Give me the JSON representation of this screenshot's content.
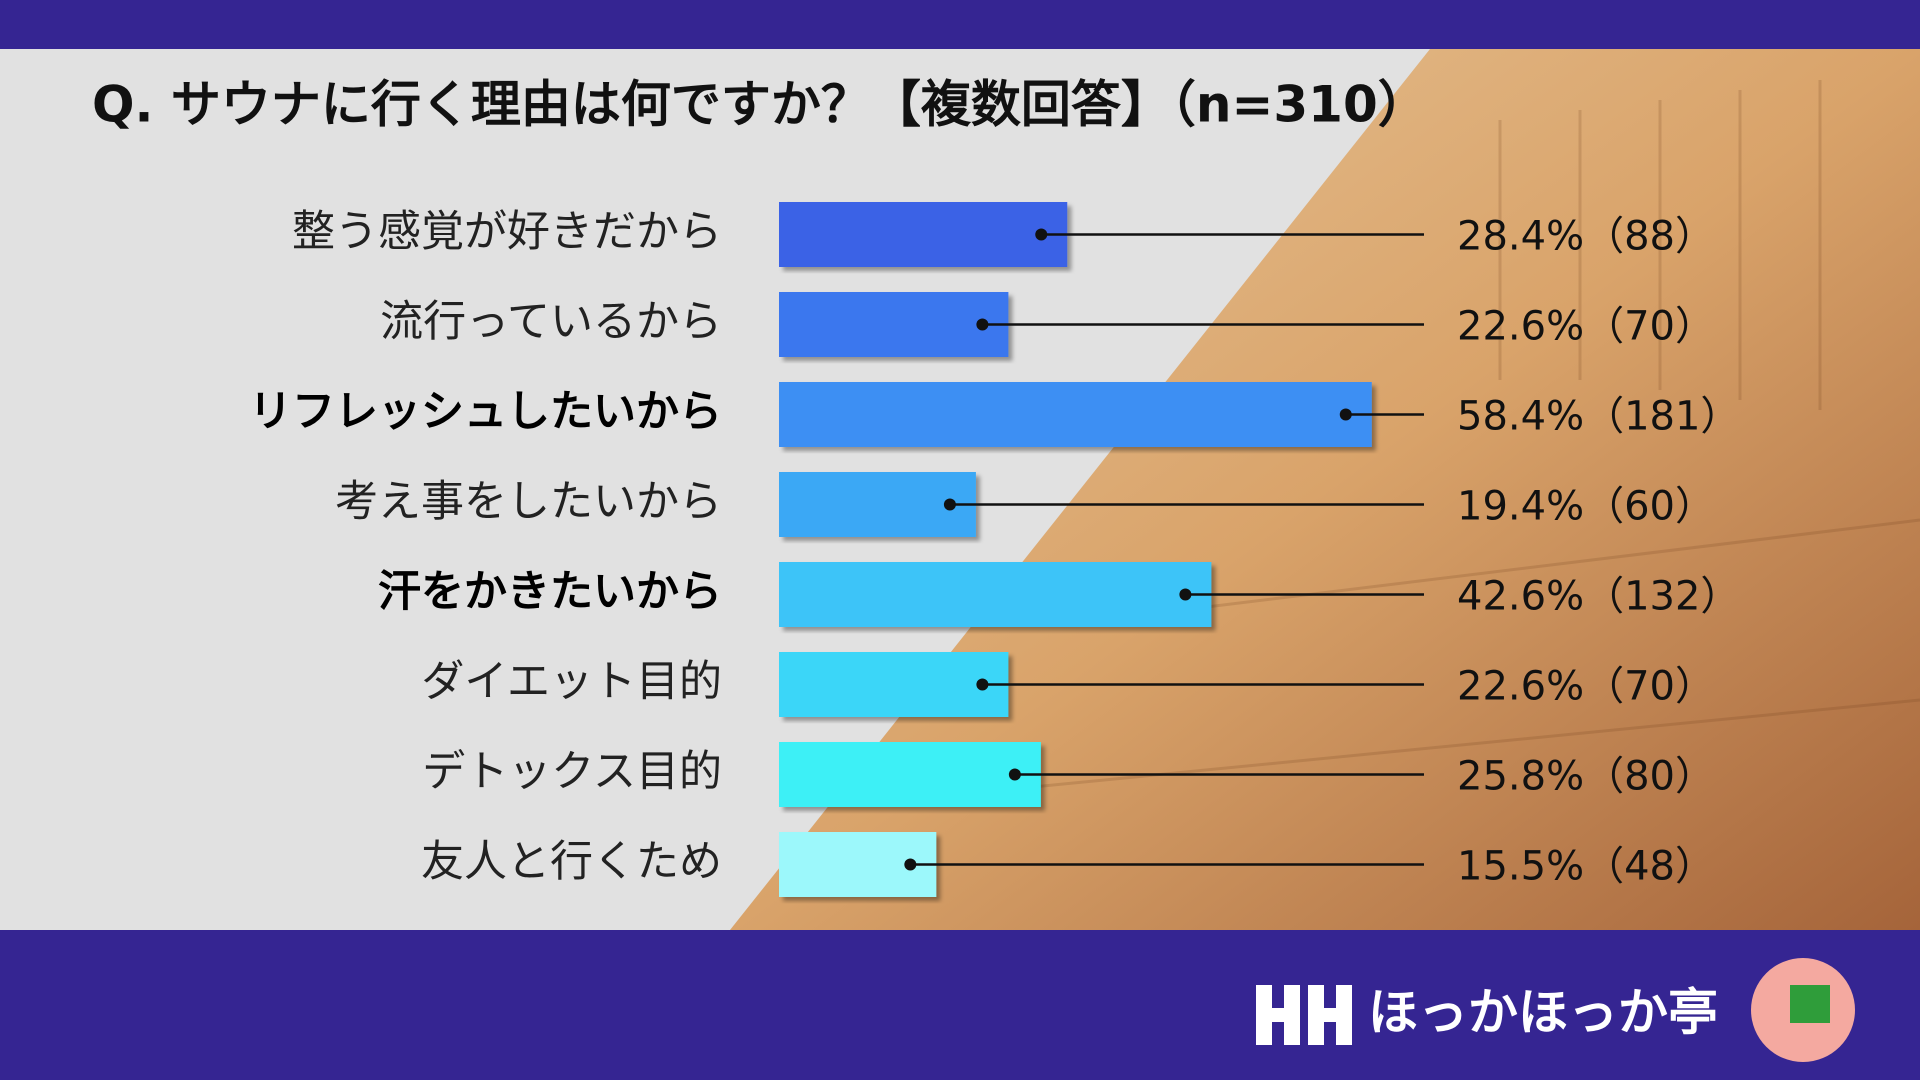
{
  "chart_data": {
    "type": "bar",
    "orientation": "horizontal",
    "title": "Q. サウナに行く理由は何ですか？【複数回答】（n=310）",
    "categories": [
      "整う感覚が好きだから",
      "流行っているから",
      "リフレッシュしたいから",
      "考え事をしたいから",
      "汗をかきたいから",
      "ダイエット目的",
      "デトックス目的",
      "友人と行くため"
    ],
    "values": [
      28.4,
      22.6,
      58.4,
      19.4,
      42.6,
      22.6,
      25.8,
      15.5
    ],
    "value_labels": [
      "28.4%（88）",
      "22.6%（70）",
      "58.4%（181）",
      "19.4%（60）",
      "42.6%（132）",
      "22.6%（70）",
      "25.8%（80）",
      "15.5%（48）"
    ],
    "colors": [
      "#3a62e6",
      "#3a77ee",
      "#3d8ff3",
      "#3aa8f5",
      "#3dc4f8",
      "#3ad6f8",
      "#3cf0f6",
      "#9cf8fb"
    ],
    "xlim": [
      0,
      100
    ]
  },
  "footer": {
    "brand": "ほっかほっか亭"
  }
}
